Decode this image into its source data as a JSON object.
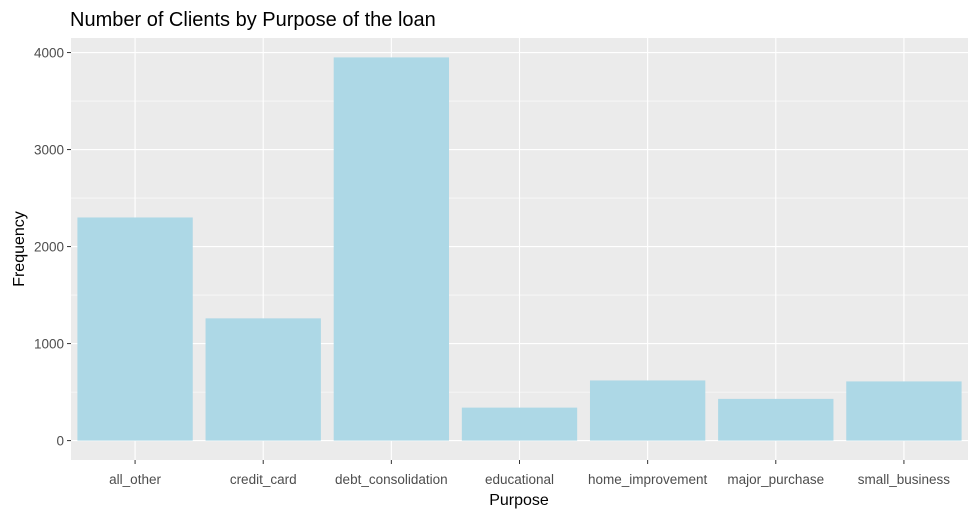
{
  "chart_data": {
    "type": "bar",
    "title": "Number of Clients by Purpose of the loan",
    "xlabel": "Purpose",
    "ylabel": "Frequency",
    "categories": [
      "all_other",
      "credit_card",
      "debt_consolidation",
      "educational",
      "home_improvement",
      "major_purchase",
      "small_business"
    ],
    "values": [
      2300,
      1260,
      3950,
      340,
      620,
      430,
      610
    ],
    "ylim": [
      -200,
      4150
    ],
    "yticks": [
      0,
      1000,
      2000,
      3000,
      4000
    ],
    "grid": true,
    "colors": {
      "bar": "#add8e6",
      "panel": "#ebebeb",
      "grid_major": "#ffffff",
      "grid_minor": "#f5f5f5",
      "tick": "#333333"
    }
  }
}
